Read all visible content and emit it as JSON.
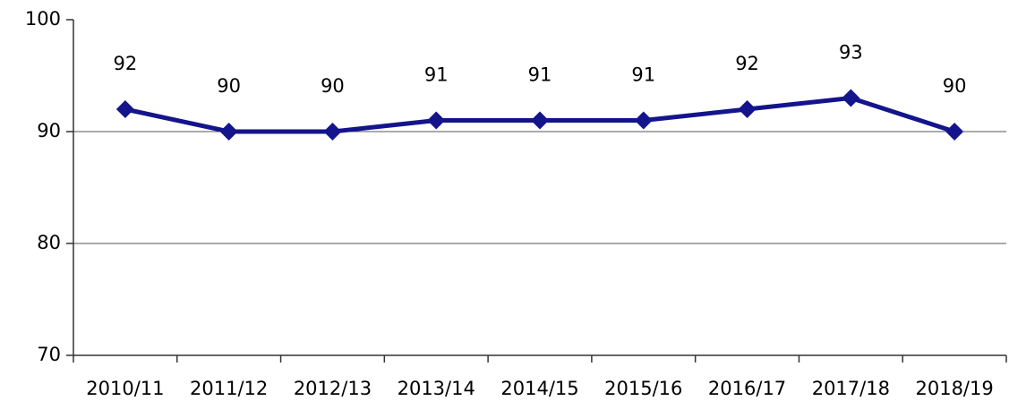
{
  "chart_data": {
    "type": "line",
    "categories": [
      "2010/11",
      "2011/12",
      "2012/13",
      "2013/14",
      "2014/15",
      "2015/16",
      "2016/17",
      "2017/18",
      "2018/19"
    ],
    "series": [
      {
        "color": "#14148c",
        "values": [
          92,
          90,
          90,
          91,
          91,
          91,
          92,
          93,
          90
        ]
      }
    ],
    "ylim": [
      70,
      100
    ],
    "yticks": [
      70,
      80,
      90,
      100
    ],
    "grid": true
  }
}
